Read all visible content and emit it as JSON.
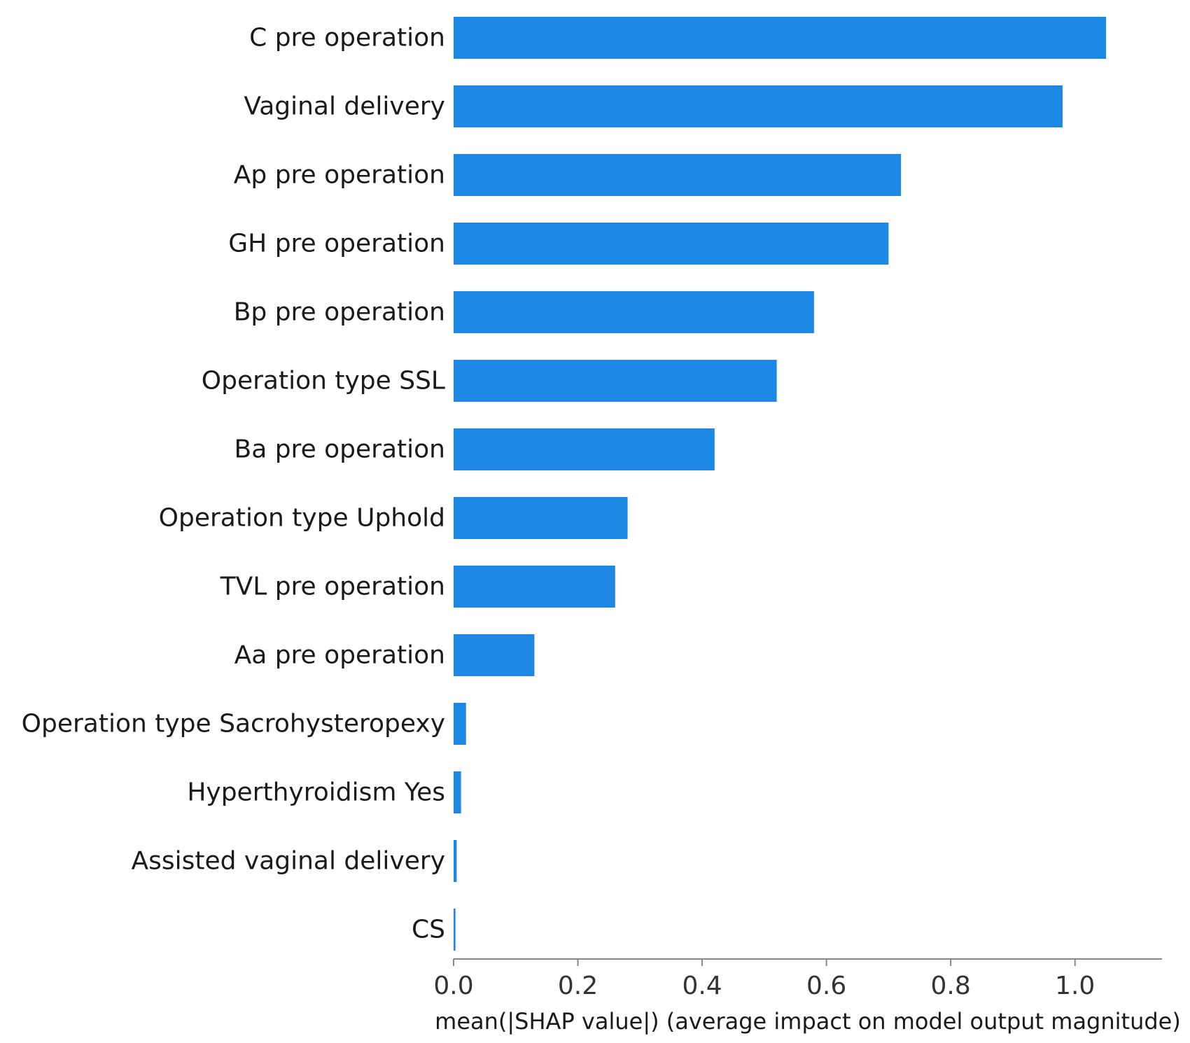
{
  "chart_data": {
    "type": "bar",
    "orientation": "horizontal",
    "categories": [
      "C pre operation",
      "Vaginal delivery",
      "Ap pre operation",
      "GH pre operation",
      "Bp pre operation",
      "Operation type SSL",
      "Ba pre operation",
      "Operation type Uphold",
      "TVL pre operation",
      "Aa pre operation",
      "Operation type Sacrohysteropexy",
      "Hyperthyroidism Yes",
      "Assisted vaginal delivery",
      "CS"
    ],
    "values": [
      1.05,
      0.98,
      0.72,
      0.7,
      0.58,
      0.52,
      0.42,
      0.28,
      0.26,
      0.13,
      0.02,
      0.012,
      0.005,
      0.003
    ],
    "xlabel": "mean(|SHAP value|) (average impact on model output magnitude)",
    "ylabel": "",
    "title": "",
    "xlim": [
      0,
      1.14
    ],
    "xticks": [
      0.0,
      0.2,
      0.4,
      0.6,
      0.8,
      1.0
    ],
    "xtick_labels": [
      "0.0",
      "0.2",
      "0.4",
      "0.6",
      "0.8",
      "1.0"
    ],
    "bar_color": "#1e88e5",
    "axis_color": "#888888",
    "grid": false,
    "legend": "none"
  }
}
